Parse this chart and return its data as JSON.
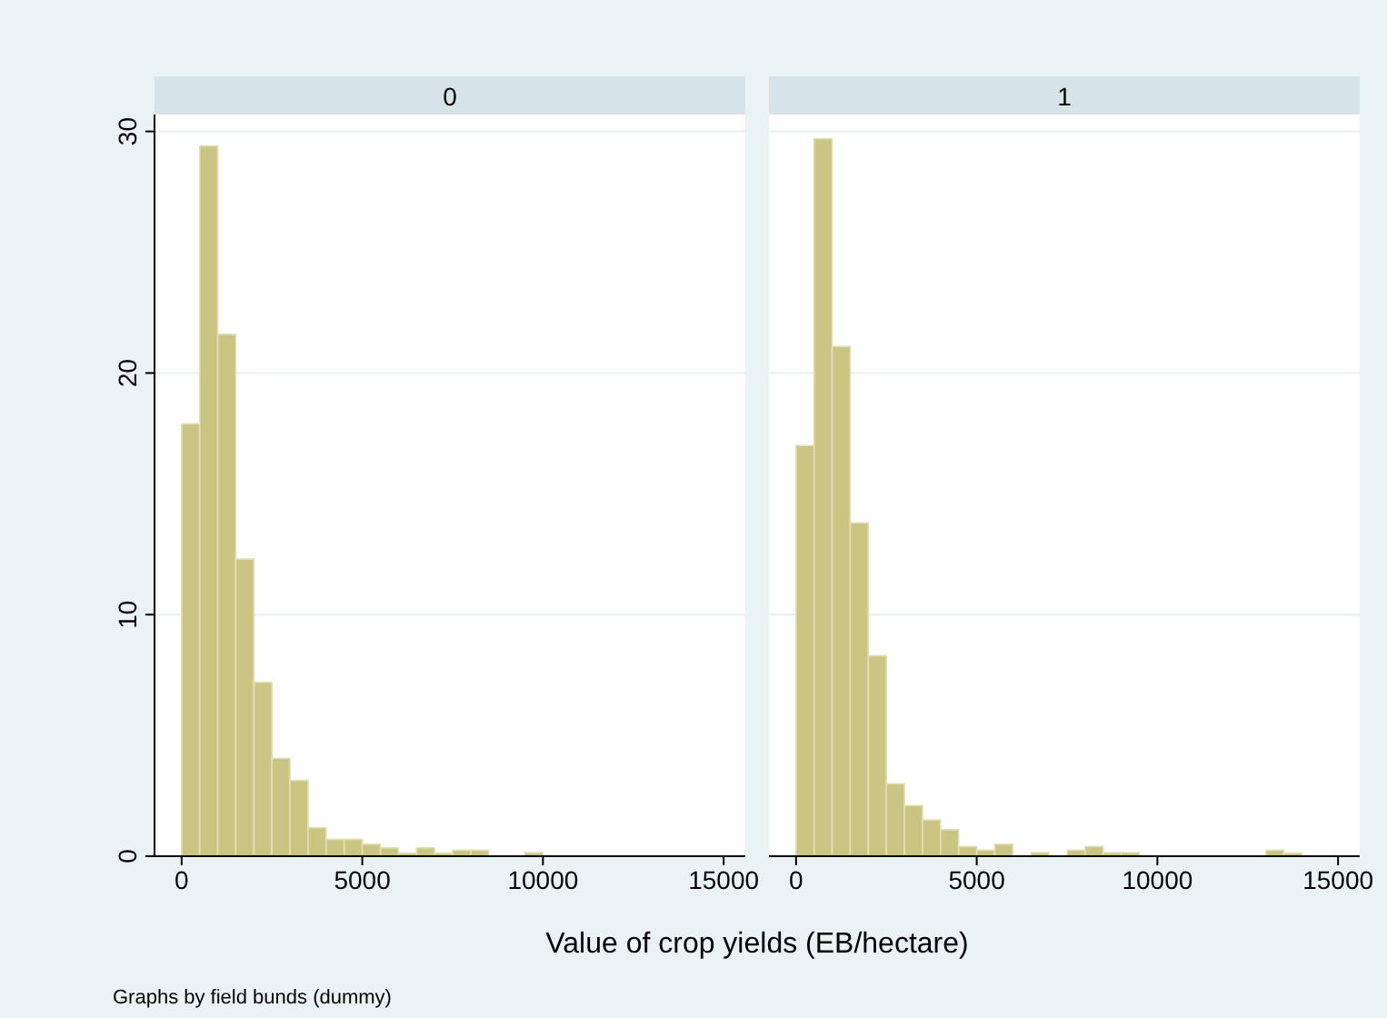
{
  "chart_data": [
    {
      "type": "histogram",
      "title": "0",
      "xlabel": "Value of crop yields (EB/hectare)",
      "annotations": [
        "Graphs by field bunds (dummy)"
      ],
      "bins": [
        0,
        500,
        1000,
        1500,
        2000,
        2500,
        3000,
        3500,
        4000,
        4500,
        5000,
        5500,
        6000,
        6500,
        7000,
        7500,
        8000,
        8500,
        9000,
        9500,
        10000
      ],
      "values": [
        17.9,
        29.4,
        21.6,
        12.3,
        7.2,
        4.05,
        3.14,
        1.18,
        0.7,
        0.7,
        0.5,
        0.35,
        0.13,
        0.35,
        0.13,
        0.25,
        0.25,
        0,
        0,
        0.15
      ],
      "color": "#cbc584",
      "xlim": [
        -750,
        15600
      ],
      "xticks": [
        0,
        5000,
        10000,
        15000
      ],
      "ylim": [
        0,
        30.7
      ],
      "yticks": [
        0,
        10,
        20,
        30
      ],
      "grid": "y"
    },
    {
      "type": "histogram",
      "title": "1",
      "bins": [
        0,
        500,
        1000,
        1500,
        2000,
        2500,
        3000,
        3500,
        4000,
        4500,
        5000,
        5500,
        6000,
        6500,
        7000,
        7500,
        8000,
        8500,
        9000,
        9500,
        10000,
        10500,
        11000,
        11500,
        12000,
        12500,
        13000,
        13500,
        14000
      ],
      "values": [
        17.0,
        29.7,
        21.1,
        13.8,
        8.3,
        3.0,
        2.1,
        1.5,
        1.1,
        0.4,
        0.25,
        0.5,
        0,
        0.15,
        0,
        0.25,
        0.4,
        0.15,
        0.15,
        0,
        0,
        0,
        0,
        0,
        0,
        0,
        0.25,
        0.13
      ],
      "color": "#cbc584",
      "xlim": [
        -750,
        15600
      ],
      "xticks": [
        0,
        5000,
        10000,
        15000
      ],
      "ylim": [
        0,
        30.7
      ],
      "yticks": [
        0,
        10,
        20,
        30
      ],
      "grid": "y",
      "tick_labels": "x"
    }
  ]
}
